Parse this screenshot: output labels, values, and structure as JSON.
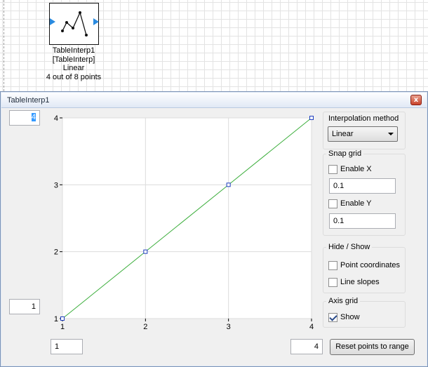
{
  "canvas": {
    "block": {
      "icon": "line-chart-icon",
      "name": "TableInterp1",
      "type": "[TableInterp]",
      "method": "Linear",
      "points": "4 out of 8 points"
    }
  },
  "dialog": {
    "title": "TableInterp1",
    "close_label": "x",
    "y_max_value": "4",
    "y_min_value": "1",
    "x_min_value": "1",
    "x_max_value": "4",
    "interpolation": {
      "label": "Interpolation method",
      "selected": "Linear"
    },
    "snap_grid": {
      "label": "Snap grid",
      "enable_x_label": "Enable X",
      "enable_x_checked": false,
      "x_value": "0.1",
      "enable_y_label": "Enable Y",
      "enable_y_checked": false,
      "y_value": "0.1"
    },
    "hide_show": {
      "label": "Hide / Show",
      "point_coords_label": "Point coordinates",
      "point_coords_checked": false,
      "line_slopes_label": "Line slopes",
      "line_slopes_checked": false
    },
    "axis_grid": {
      "label": "Axis grid",
      "show_label": "Show",
      "show_checked": true
    },
    "reset_button_label": "Reset points to range"
  },
  "chart_data": {
    "type": "line",
    "x": [
      1,
      2,
      3,
      4
    ],
    "series": [
      {
        "values": [
          1,
          2,
          3,
          4
        ]
      }
    ],
    "xlim": [
      1,
      4
    ],
    "ylim": [
      1,
      4
    ],
    "x_ticks": [
      "1",
      "2",
      "3",
      "4"
    ],
    "y_ticks": [
      "1",
      "2",
      "3",
      "4"
    ],
    "grid": true,
    "line_color": "#3cae3c",
    "point_color": "#1f3fbf"
  }
}
